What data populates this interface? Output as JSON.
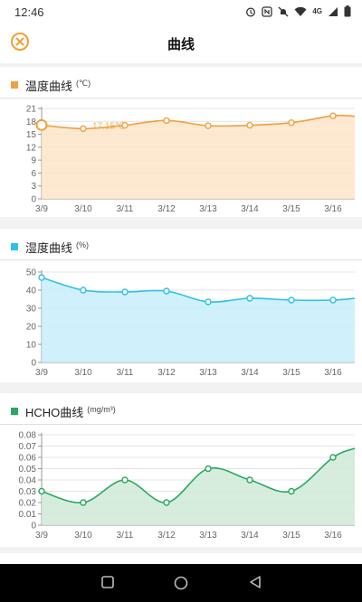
{
  "status": {
    "time": "12:46",
    "icons": [
      "alarm-icon",
      "nfc-icon",
      "mute-icon",
      "wifi-icon",
      "signal-icon",
      "battery-icon"
    ],
    "network": "4G"
  },
  "appbar": {
    "title": "曲线",
    "close_icon": "close-circle-icon",
    "accent": "#f0a030"
  },
  "charts": [
    {
      "id": "temp",
      "title": "温度曲线",
      "unit": "(℃)",
      "color": "#f0a040",
      "fill": "#fde4c8",
      "selected": {
        "index": 0,
        "label": "17.15℃"
      },
      "chart_data": {
        "type": "area",
        "title": "温度曲线",
        "ylabel": "(℃)",
        "categories": [
          "3/9",
          "3/10",
          "3/11",
          "3/12",
          "3/13",
          "3/14",
          "3/15",
          "3/16"
        ],
        "values": [
          17.15,
          16.3,
          17.1,
          18.2,
          17.0,
          17.1,
          17.7,
          19.3
        ],
        "end_value": 19.2,
        "yticks": [
          "0",
          "3",
          "6",
          "9",
          "12",
          "15",
          "18",
          "21"
        ],
        "ylim": [
          0,
          21
        ],
        "grid": true
      }
    },
    {
      "id": "humid",
      "title": "湿度曲线",
      "unit": "(%)",
      "color": "#2ec0e8",
      "fill": "#c8eefa",
      "chart_data": {
        "type": "area",
        "title": "湿度曲线",
        "ylabel": "(%)",
        "categories": [
          "3/9",
          "3/10",
          "3/11",
          "3/12",
          "3/13",
          "3/14",
          "3/15",
          "3/16"
        ],
        "values": [
          47,
          40,
          39,
          39.5,
          33.5,
          35.5,
          34.5,
          34.5
        ],
        "end_value": 35.5,
        "yticks": [
          "0",
          "10",
          "20",
          "30",
          "40",
          "50"
        ],
        "ylim": [
          0,
          50
        ],
        "grid": true
      }
    },
    {
      "id": "hcho",
      "title": "HCHO曲线",
      "unit": "(mg/m³)",
      "color": "#2aa860",
      "fill": "#cfead8",
      "chart_data": {
        "type": "area",
        "title": "HCHO曲线",
        "ylabel": "(mg/m³)",
        "categories": [
          "3/9",
          "3/10",
          "3/11",
          "3/12",
          "3/13",
          "3/14",
          "3/15",
          "3/16"
        ],
        "values": [
          0.03,
          0.02,
          0.04,
          0.02,
          0.05,
          0.04,
          0.03,
          0.06
        ],
        "end_value": 0.068,
        "yticks": [
          "0",
          "0.01",
          "0.02",
          "0.03",
          "0.04",
          "0.05",
          "0.06",
          "0.07",
          "0.08"
        ],
        "ylim": [
          0,
          0.08
        ],
        "grid": true
      }
    }
  ],
  "navbar": {
    "icons": [
      "recent-apps-icon",
      "home-icon",
      "back-icon"
    ]
  }
}
